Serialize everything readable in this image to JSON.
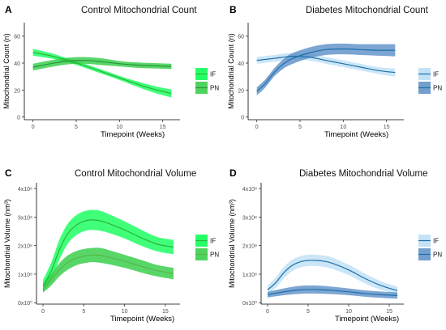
{
  "chart_data": [
    {
      "panel": "A",
      "type": "line",
      "title": "Control Mitochondrial Count",
      "xlabel": "Timepoint (Weeks)",
      "ylabel": "Mitochondrial Count (n)",
      "xlim": [
        -1,
        17
      ],
      "ylim": [
        -2,
        70
      ],
      "xticks": [
        {
          "v": 0,
          "t": "0"
        },
        {
          "v": 5,
          "t": "5"
        },
        {
          "v": 10,
          "t": "10"
        },
        {
          "v": 15,
          "t": "15"
        }
      ],
      "yticks": [
        {
          "v": 0,
          "t": "0"
        },
        {
          "v": 20,
          "t": "20"
        },
        {
          "v": 40,
          "t": "40"
        },
        {
          "v": 60,
          "t": "60"
        }
      ],
      "legend_position": "right",
      "series": [
        {
          "name": "IF",
          "color": "#2ab33a",
          "band": "#00ff4c",
          "x": [
            0,
            2,
            4,
            6,
            8,
            10,
            12,
            14,
            16
          ],
          "y": [
            48,
            45.5,
            42,
            38,
            33.5,
            29,
            24.5,
            20.5,
            17.5
          ],
          "lower": [
            45.5,
            43.5,
            40.5,
            36.5,
            32,
            27.5,
            22.5,
            18,
            14.5
          ],
          "upper": [
            50.5,
            47.5,
            43.5,
            39.5,
            35,
            30.5,
            26.5,
            23,
            20.5
          ]
        },
        {
          "name": "PN",
          "color": "#2a9440",
          "band": "#2fcc42",
          "x": [
            0,
            2,
            4,
            6,
            8,
            10,
            12,
            14,
            16
          ],
          "y": [
            37,
            39.5,
            41.5,
            42,
            41,
            39.5,
            38.5,
            38,
            37.5
          ],
          "lower": [
            34.5,
            37,
            39,
            39.5,
            38.5,
            37.5,
            36.5,
            36,
            35.5
          ],
          "upper": [
            39.5,
            42,
            44,
            44.5,
            43.5,
            41.5,
            40.5,
            40,
            39.5
          ]
        }
      ]
    },
    {
      "panel": "B",
      "type": "line",
      "title": "Diabetes Mitochondrial Count",
      "xlabel": "Timepoint (Weeks)",
      "ylabel": "Mitochondrial Count (n)",
      "xlim": [
        -1,
        17
      ],
      "ylim": [
        -2,
        70
      ],
      "xticks": [
        {
          "v": 0,
          "t": "0"
        },
        {
          "v": 5,
          "t": "5"
        },
        {
          "v": 10,
          "t": "10"
        },
        {
          "v": 15,
          "t": "15"
        }
      ],
      "yticks": [
        {
          "v": 0,
          "t": "0"
        },
        {
          "v": 20,
          "t": "20"
        },
        {
          "v": 40,
          "t": "40"
        },
        {
          "v": 60,
          "t": "60"
        }
      ],
      "legend_position": "right",
      "series": [
        {
          "name": "IF",
          "color": "#1d6fa8",
          "band": "#b9ddf4",
          "x": [
            0,
            2,
            4,
            6,
            8,
            10,
            12,
            14,
            16
          ],
          "y": [
            42,
            43.5,
            45,
            44.5,
            42,
            39.5,
            37,
            34.5,
            33
          ],
          "lower": [
            39.5,
            41,
            42.5,
            42,
            39.5,
            37,
            34.5,
            32,
            30
          ],
          "upper": [
            44.5,
            46,
            47.5,
            47,
            44.5,
            42,
            39.5,
            37,
            36
          ]
        },
        {
          "name": "PN",
          "color": "#1d6fa8",
          "band": "#5b8ec7",
          "x": [
            0,
            1,
            2,
            3,
            4,
            6,
            8,
            10,
            12,
            14,
            16
          ],
          "y": [
            19,
            25,
            33,
            39,
            43,
            47.5,
            50,
            50.5,
            50,
            49.5,
            49.5
          ],
          "lower": [
            16,
            22,
            30,
            35.5,
            39,
            43.5,
            46,
            46.5,
            46,
            45.5,
            45
          ],
          "upper": [
            22,
            28,
            36,
            42.5,
            47,
            51.5,
            54,
            54.5,
            54,
            54,
            54
          ]
        }
      ]
    },
    {
      "panel": "C",
      "type": "line",
      "title": "Control Mitochondrial Volume",
      "xlabel": "Timepoint (Weeks)",
      "ylabel": "Mitochondrial Volume (nm³)",
      "xlim": [
        -0.8,
        16.8
      ],
      "ylim": [
        -5000000,
        420000000
      ],
      "xticks": [
        {
          "v": 0,
          "t": "0"
        },
        {
          "v": 5,
          "t": "5"
        },
        {
          "v": 10,
          "t": "10"
        },
        {
          "v": 15,
          "t": "15"
        }
      ],
      "yticks": [
        {
          "v": 0,
          "t": "0x10⁰"
        },
        {
          "v": 100000000,
          "t": "1x10⁸"
        },
        {
          "v": 200000000,
          "t": "2x10⁸"
        },
        {
          "v": 300000000,
          "t": "3x10⁸"
        },
        {
          "v": 400000000,
          "t": "4x10⁸"
        }
      ],
      "legend_position": "right",
      "series": [
        {
          "name": "IF",
          "color": "#2ab33a",
          "band": "#00ff4c",
          "x": [
            0,
            1,
            2,
            3,
            4,
            5,
            6,
            7,
            8,
            10,
            12,
            14,
            16
          ],
          "y": [
            60000000,
            110000000,
            185000000,
            240000000,
            270000000,
            285000000,
            290000000,
            287000000,
            278000000,
            255000000,
            228000000,
            205000000,
            195000000
          ],
          "lower": [
            40000000,
            80000000,
            150000000,
            205000000,
            235000000,
            250000000,
            255000000,
            252000000,
            245000000,
            225000000,
            200000000,
            180000000,
            170000000
          ],
          "upper": [
            80000000,
            140000000,
            220000000,
            275000000,
            305000000,
            320000000,
            325000000,
            322000000,
            311000000,
            285000000,
            256000000,
            230000000,
            220000000
          ]
        },
        {
          "name": "PN",
          "color": "#56b948",
          "band": "#2fcc42",
          "x": [
            0,
            1,
            2,
            3,
            4,
            5,
            6,
            7,
            8,
            10,
            12,
            14,
            16
          ],
          "y": [
            50000000,
            80000000,
            115000000,
            140000000,
            155000000,
            163000000,
            167000000,
            166000000,
            160000000,
            145000000,
            128000000,
            112000000,
            102000000
          ],
          "lower": [
            35000000,
            60000000,
            92000000,
            115000000,
            130000000,
            138000000,
            142000000,
            140000000,
            135000000,
            122000000,
            106000000,
            92000000,
            82000000
          ],
          "upper": [
            65000000,
            100000000,
            138000000,
            165000000,
            180000000,
            188000000,
            192000000,
            192000000,
            185000000,
            168000000,
            150000000,
            132000000,
            122000000
          ]
        }
      ]
    },
    {
      "panel": "D",
      "type": "line",
      "title": "Diabetes Mitochondrial Volume",
      "xlabel": "Timepoint (Weeks)",
      "ylabel": "Mitochondrial Volume (nm³)",
      "xlim": [
        -0.8,
        16.8
      ],
      "ylim": [
        -5000000,
        420000000
      ],
      "xticks": [
        {
          "v": 0,
          "t": "0"
        },
        {
          "v": 5,
          "t": "5"
        },
        {
          "v": 10,
          "t": "10"
        },
        {
          "v": 15,
          "t": "15"
        }
      ],
      "yticks": [
        {
          "v": 0,
          "t": "0x10⁰"
        },
        {
          "v": 100000000,
          "t": "1x10⁸"
        },
        {
          "v": 200000000,
          "t": "2x10⁸"
        },
        {
          "v": 300000000,
          "t": "3x10⁸"
        },
        {
          "v": 400000000,
          "t": "4x10⁸"
        }
      ],
      "legend_position": "right",
      "series": [
        {
          "name": "IF",
          "color": "#1d6fa8",
          "band": "#b9ddf4",
          "x": [
            0,
            1,
            2,
            3,
            4,
            5,
            6,
            7,
            8,
            10,
            12,
            14,
            16
          ],
          "y": [
            45000000,
            70000000,
            105000000,
            130000000,
            143000000,
            148000000,
            148000000,
            145000000,
            138000000,
            115000000,
            85000000,
            60000000,
            42000000
          ],
          "lower": [
            30000000,
            52000000,
            85000000,
            110000000,
            123000000,
            128000000,
            128000000,
            125000000,
            118000000,
            97000000,
            68000000,
            45000000,
            28000000
          ],
          "upper": [
            60000000,
            88000000,
            125000000,
            150000000,
            163000000,
            168000000,
            168000000,
            165000000,
            158000000,
            133000000,
            102000000,
            75000000,
            56000000
          ]
        },
        {
          "name": "PN",
          "color": "#1d6fa8",
          "band": "#5b8ec7",
          "x": [
            0,
            2,
            4,
            6,
            8,
            10,
            12,
            14,
            16
          ],
          "y": [
            28000000,
            38000000,
            45000000,
            46000000,
            43000000,
            38000000,
            32000000,
            28000000,
            25000000
          ],
          "lower": [
            18000000,
            26000000,
            31000000,
            32000000,
            30000000,
            26000000,
            21000000,
            17000000,
            14000000
          ],
          "upper": [
            38000000,
            50000000,
            59000000,
            60000000,
            56000000,
            50000000,
            43000000,
            39000000,
            36000000
          ]
        }
      ]
    }
  ]
}
